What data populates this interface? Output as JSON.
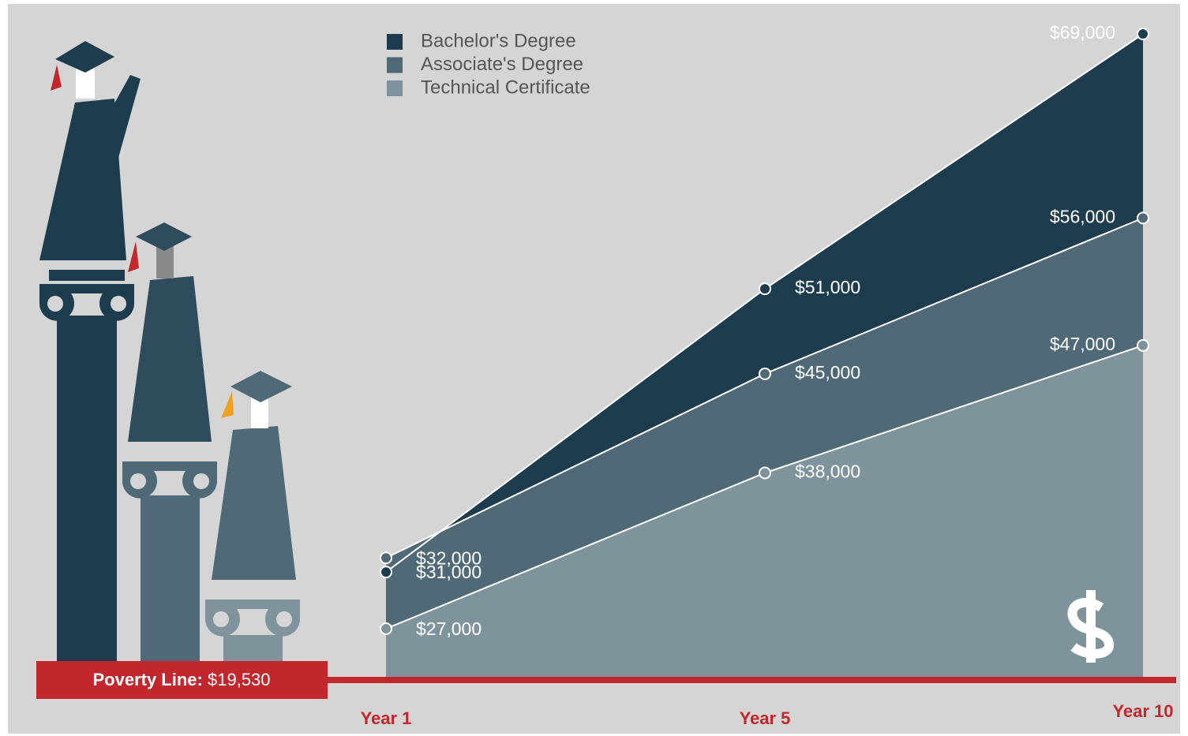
{
  "chart_data": {
    "type": "area",
    "categories": [
      "Year 1",
      "Year 5",
      "Year 10"
    ],
    "series": [
      {
        "name": "Bachelor's Degree",
        "color": "#1d3d4f",
        "values": [
          31000,
          51000,
          69000
        ],
        "value_labels": [
          "$31,000",
          "$51,000",
          "$69,000"
        ]
      },
      {
        "name": "Associate's Degree",
        "color": "#4f6a76",
        "values": [
          32000,
          45000,
          56000
        ],
        "value_labels": [
          "$32,000",
          "$45,000",
          "$56,000"
        ]
      },
      {
        "name": "Technical Certificate",
        "color": "#7f939c",
        "values": [
          27000,
          38000,
          47000
        ],
        "value_labels": [
          "$27,000",
          "$38,000",
          "$47,000"
        ]
      }
    ],
    "ylim": [
      23600,
      69000
    ],
    "poverty_line": {
      "label": "Poverty Line:",
      "value": 19530,
      "value_label": "$19,530",
      "color": "#c1272d"
    },
    "category_color": "#c1272d"
  }
}
